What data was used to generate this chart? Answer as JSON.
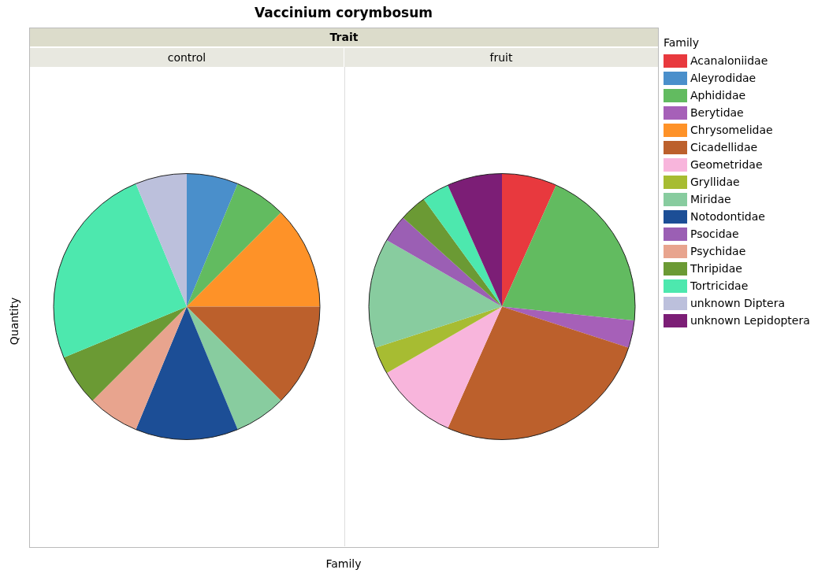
{
  "chart_data": {
    "type": "pie",
    "title": "Vaccinium corymbosum",
    "annotations": [
      "Trait"
    ],
    "xlabel": "Family",
    "ylabel": "Quantity",
    "legend_title": "Family",
    "legend": "right",
    "categories": [
      "Acanaloniidae",
      "Aleyrodidae",
      "Aphididae",
      "Berytidae",
      "Chrysomelidae",
      "Cicadellidae",
      "Geometridae",
      "Gryllidae",
      "Miridae",
      "Notodontidae",
      "Psocidae",
      "Psychidae",
      "Thripidae",
      "Tortricidae",
      "unknown Diptera",
      "unknown Lepidoptera"
    ],
    "colors": [
      "#e8393e",
      "#4a8fcb",
      "#62bb60",
      "#a660b8",
      "#fe9228",
      "#bc602c",
      "#f8b5dc",
      "#a7bc32",
      "#88cc9f",
      "#1c4e96",
      "#9b5fb4",
      "#e8a48e",
      "#6b9a34",
      "#4de8ae",
      "#bcc0dc",
      "#7c1e76"
    ],
    "series": [
      {
        "name": "control",
        "values": [
          0,
          6.25,
          6.25,
          0,
          12.5,
          12.5,
          0,
          0,
          6.25,
          12.5,
          0,
          6.25,
          6.25,
          25,
          6.25,
          0
        ]
      },
      {
        "name": "fruit",
        "values": [
          6.67,
          0,
          20,
          3.33,
          0,
          26.67,
          10,
          3.33,
          13.33,
          0,
          3.33,
          0,
          3.33,
          3.34,
          0,
          6.67
        ]
      }
    ]
  }
}
